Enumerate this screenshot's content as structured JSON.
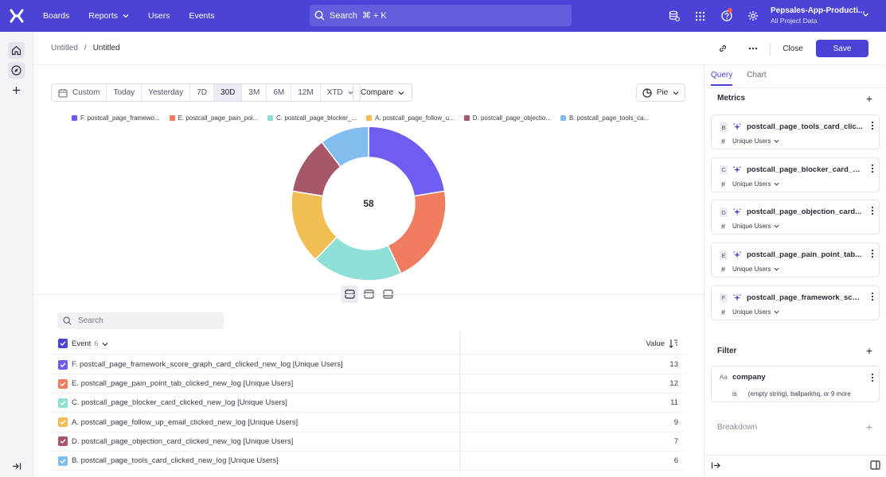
{
  "topbar": {
    "nav": [
      {
        "label": "Boards"
      },
      {
        "label": "Reports",
        "has_dropdown": true
      },
      {
        "label": "Users"
      },
      {
        "label": "Events"
      }
    ],
    "search": {
      "label": "Search",
      "shortcut": "⌘ + K"
    },
    "project": {
      "name": "Pepsales-App-Producti...",
      "sub": "All Project Data"
    },
    "icons": [
      "database-icon",
      "apps-grid-icon",
      "help-icon",
      "settings-icon"
    ],
    "brand_color": "#4a43d6"
  },
  "header": {
    "breadcrumb": [
      "Untitled",
      "Untitled"
    ],
    "close_label": "Close",
    "save_label": "Save"
  },
  "toolbar": {
    "date_ranges": [
      "Custom",
      "Today",
      "Yesterday",
      "7D",
      "30D",
      "3M",
      "6M",
      "12M",
      "XTD"
    ],
    "active_range": "30D",
    "compare_label": "Compare",
    "chart_type_label": "Pie"
  },
  "chart_data": {
    "type": "pie",
    "center_label": "58",
    "categories": [
      "F. postcall_page_framewo...",
      "E. postcall_page_pain_poi...",
      "C. postcall_page_blocker_...",
      "A. postcall_page_follow_u...",
      "D. postcall_page_objectio...",
      "B. postcall_page_tools_ca..."
    ],
    "values": [
      13,
      12,
      11,
      9,
      7,
      6
    ],
    "colors": [
      "#6e5df0",
      "#f07d60",
      "#8ee0d6",
      "#f2bd52",
      "#a8566a",
      "#82bdf0"
    ],
    "legend_position": "top"
  },
  "table": {
    "search_placeholder": "Search",
    "event_header": "Event",
    "event_count": "6",
    "value_header": "Value",
    "rows": [
      {
        "label": "F. postcall_page_framework_score_graph_card_clicked_new_log [Unique Users]",
        "value": "13",
        "color": "#6e5df0"
      },
      {
        "label": "E. postcall_page_pain_point_tab_clicked_new_log [Unique Users]",
        "value": "12",
        "color": "#f07d60"
      },
      {
        "label": "C. postcall_page_blocker_card_clicked_new_log [Unique Users]",
        "value": "11",
        "color": "#8ee0d6"
      },
      {
        "label": "A. postcall_page_follow_up_email_clicked_new_log [Unique Users]",
        "value": "9",
        "color": "#f2bd52"
      },
      {
        "label": "D. postcall_page_objection_card_clicked_new_log [Unique Users]",
        "value": "7",
        "color": "#a8566a"
      },
      {
        "label": "B. postcall_page_tools_card_clicked_new_log [Unique Users]",
        "value": "6",
        "color": "#82bdf0"
      }
    ]
  },
  "panel": {
    "tabs": [
      "Query",
      "Chart"
    ],
    "active_tab": "Query",
    "metrics_title": "Metrics",
    "metrics": [
      {
        "letter": "B",
        "name": "postcall_page_tools_card_clic...",
        "agg": "Unique Users"
      },
      {
        "letter": "C",
        "name": "postcall_page_blocker_card_c...",
        "agg": "Unique Users"
      },
      {
        "letter": "D",
        "name": "postcall_page_objection_card...",
        "agg": "Unique Users"
      },
      {
        "letter": "E",
        "name": "postcall_page_pain_point_tab...",
        "agg": "Unique Users"
      },
      {
        "letter": "F",
        "name": "postcall_page_framework_sco...",
        "agg": "Unique Users"
      }
    ],
    "filter_title": "Filter",
    "filter": {
      "type_label": "Aa",
      "property": "company",
      "operator": "is",
      "value": "(empty string), ballparkhq, or 9 more"
    },
    "breakdown_title": "Breakdown"
  }
}
